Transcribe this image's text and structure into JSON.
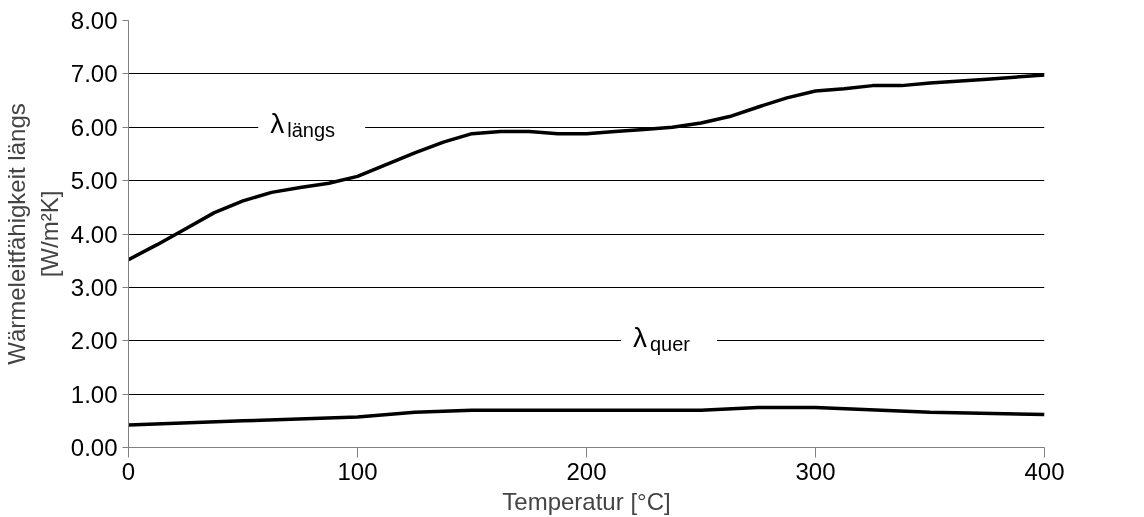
{
  "chart_data": {
    "type": "line",
    "xlabel": "Temperatur [°C]",
    "ylabel": "Wärmeleitfähigkeit längs\n[W/m²K]",
    "xlim": [
      0,
      400
    ],
    "xticks": [
      0,
      100,
      200,
      300,
      400
    ],
    "ylim": [
      0,
      8
    ],
    "yticks": [
      {
        "value": 0,
        "label": "0.00"
      },
      {
        "value": 1,
        "label": "1.00"
      },
      {
        "value": 2,
        "label": "2.00"
      },
      {
        "value": 3,
        "label": "3.00"
      },
      {
        "value": 4,
        "label": "4.00"
      },
      {
        "value": 5,
        "label": "5.00"
      },
      {
        "value": 6,
        "label": "6.00"
      },
      {
        "value": 7,
        "label": "7.00"
      },
      {
        "value": 8,
        "label": "8.00"
      }
    ],
    "grid": "y",
    "marker": "none",
    "line_style": "solid",
    "series": [
      {
        "name": "λ$_{längs}$",
        "color": "#000000",
        "x": [
          0,
          12.5,
          25,
          37.5,
          50,
          62.5,
          75,
          87.5,
          100,
          112.5,
          125,
          137.5,
          150,
          162.5,
          175,
          187.5,
          200,
          212.5,
          225,
          237.5,
          250,
          262.5,
          275,
          287.5,
          300,
          312.5,
          325,
          337.5,
          350,
          375,
          400
        ],
        "values": [
          3.52,
          3.8,
          4.1,
          4.4,
          4.62,
          4.78,
          4.87,
          4.95,
          5.08,
          5.3,
          5.52,
          5.72,
          5.88,
          5.92,
          5.92,
          5.88,
          5.88,
          5.92,
          5.96,
          6.0,
          6.08,
          6.2,
          6.38,
          6.55,
          6.68,
          6.72,
          6.78,
          6.78,
          6.83,
          6.9,
          6.98
        ]
      },
      {
        "name": "λ$_{quer}$",
        "color": "#000000",
        "x": [
          0,
          50,
          100,
          125,
          150,
          250,
          275,
          300,
          350,
          400
        ],
        "values": [
          0.42,
          0.5,
          0.57,
          0.66,
          0.7,
          0.7,
          0.75,
          0.75,
          0.66,
          0.62
        ]
      }
    ]
  }
}
